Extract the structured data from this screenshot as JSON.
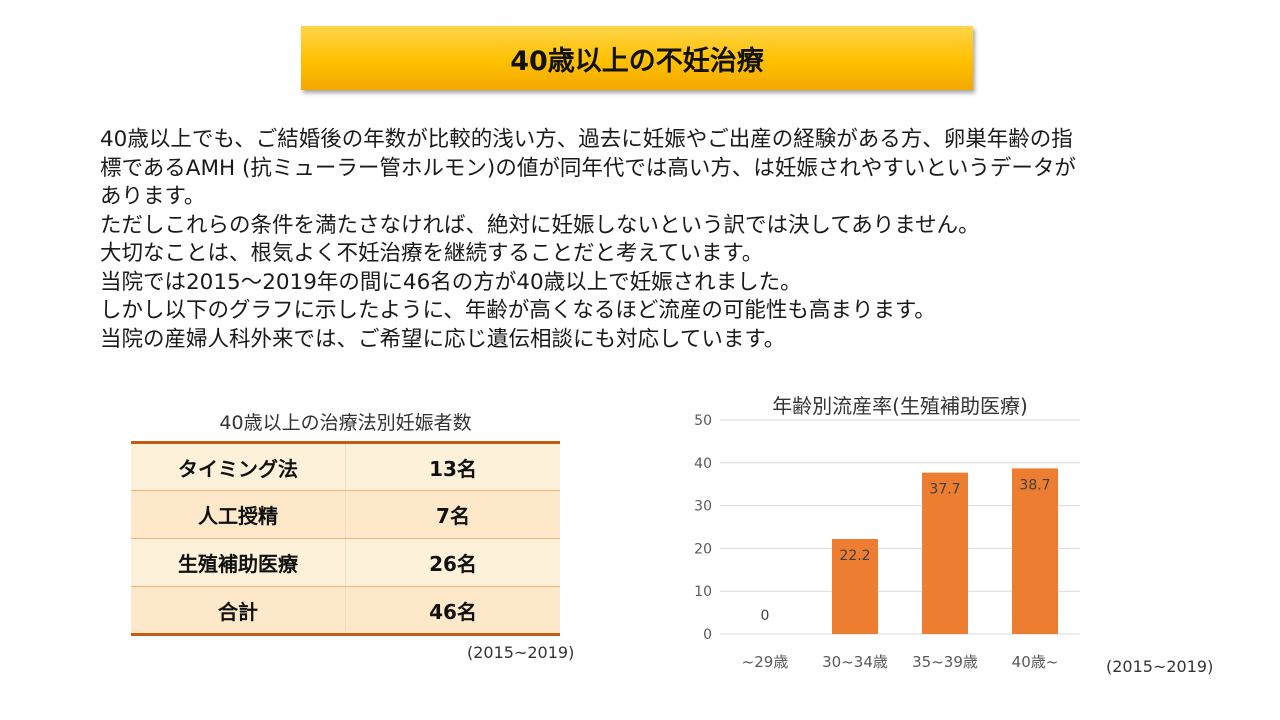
{
  "title": "40歳以上の不妊治療",
  "body_lines": [
    "40歳以上でも、ご結婚後の年数が比較的浅い方、過去に妊娠やご出産の経験がある方、卵巣年齢の指",
    "標であるAMH (抗ミューラー管ホルモン)の値が同年代では高い方、は妊娠されやすいというデータが",
    "あります。",
    "ただしこれらの条件を満たさなければ、絶対に妊娠しないという訳では決してありません。",
    "大切なことは、根気よく不妊治療を継続することだと考えています。",
    "当院では2015～2019年の間に46名の方が40歳以上で妊娠されました。",
    "しかし以下のグラフに示したように、年齢が高くなるほど流産の可能性も高まります。",
    "当院の産婦人科外来では、ご希望に応じ遺伝相談にも対応しています。"
  ],
  "table": {
    "caption": "40歳以上の治療法別妊娠者数",
    "rows": [
      {
        "method": "タイミング法",
        "count": "13名"
      },
      {
        "method": "人工授精",
        "count": "7名"
      },
      {
        "method": "生殖補助医療",
        "count": "26名"
      },
      {
        "method": "合計",
        "count": "46名"
      }
    ],
    "note": "(2015~2019)"
  },
  "chart_note": "(2015~2019)",
  "chart_data": {
    "type": "bar",
    "title": "年齢別流産率(生殖補助医療)",
    "categories": [
      "~29歳",
      "30~34歳",
      "35~39歳",
      "40歳~"
    ],
    "values": [
      0,
      22.2,
      37.7,
      38.7
    ],
    "data_labels": [
      "0",
      "22.2",
      "37.7",
      "38.7"
    ],
    "ylim": [
      0,
      50
    ],
    "yticks": [
      0,
      10,
      20,
      30,
      40,
      50
    ],
    "grid": true,
    "bar_color": "#ed7d31",
    "xlabel": "",
    "ylabel": ""
  }
}
